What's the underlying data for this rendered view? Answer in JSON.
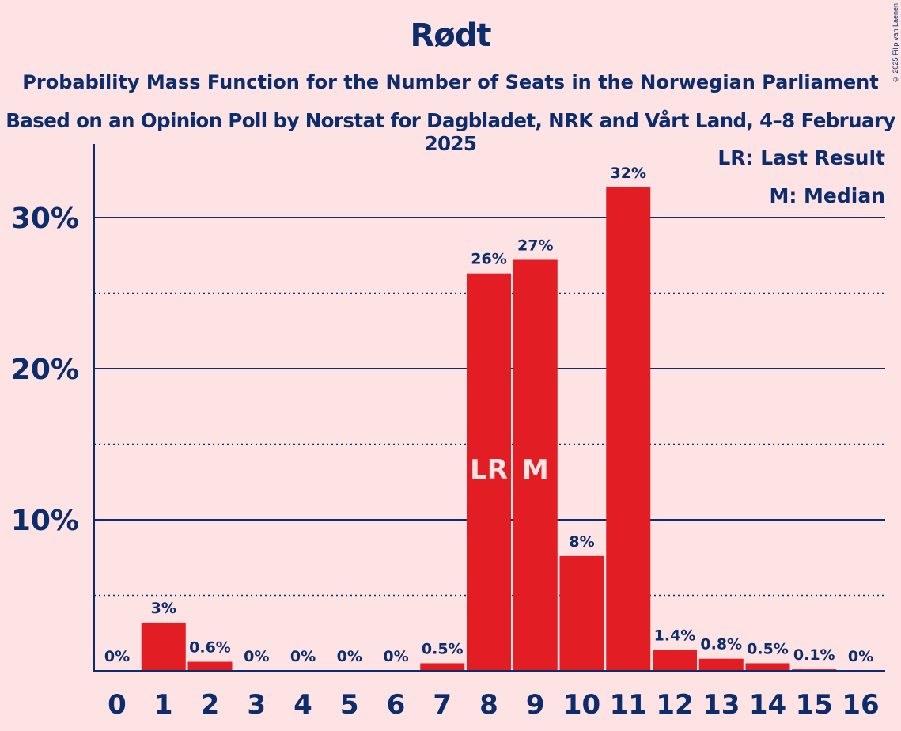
{
  "chart_data": {
    "type": "bar",
    "title": "Rødt",
    "subtitle": "Probability Mass Function for the Number of Seats in the Norwegian Parliament",
    "subtitle2": "Based on an Opinion Poll by Norstat for Dagbladet, NRK and Vårt Land, 4–8 February 2025",
    "copyright": "© 2025 Filip van Laenen",
    "categories": [
      "0",
      "1",
      "2",
      "3",
      "4",
      "5",
      "6",
      "7",
      "8",
      "9",
      "10",
      "11",
      "12",
      "13",
      "14",
      "15",
      "16"
    ],
    "values": [
      0,
      3.2,
      0.6,
      0,
      0,
      0,
      0,
      0.5,
      26.3,
      27.2,
      7.6,
      32.0,
      1.4,
      0.8,
      0.5,
      0.1,
      0
    ],
    "data_labels": [
      "0%",
      "3%",
      "0.6%",
      "0%",
      "0%",
      "0%",
      "0%",
      "0.5%",
      "26%",
      "27%",
      "8%",
      "32%",
      "1.4%",
      "0.8%",
      "0.5%",
      "0.1%",
      "0%"
    ],
    "bar_markers": {
      "8": "LR",
      "9": "M"
    },
    "ylim": [
      0,
      35
    ],
    "yticks": [
      10,
      20,
      30
    ],
    "ytick_labels": [
      "10%",
      "20%",
      "30%"
    ],
    "minor_gridlines": [
      5,
      15,
      25
    ],
    "legend": [
      "LR: Last Result",
      "M: Median"
    ],
    "legend_position": "top-right",
    "xlabel": "",
    "ylabel": "",
    "colors": {
      "background": "#fde3e4",
      "bar": "#e21d24",
      "text": "#0d2c6c",
      "marker_text": "#fde3e4"
    }
  }
}
